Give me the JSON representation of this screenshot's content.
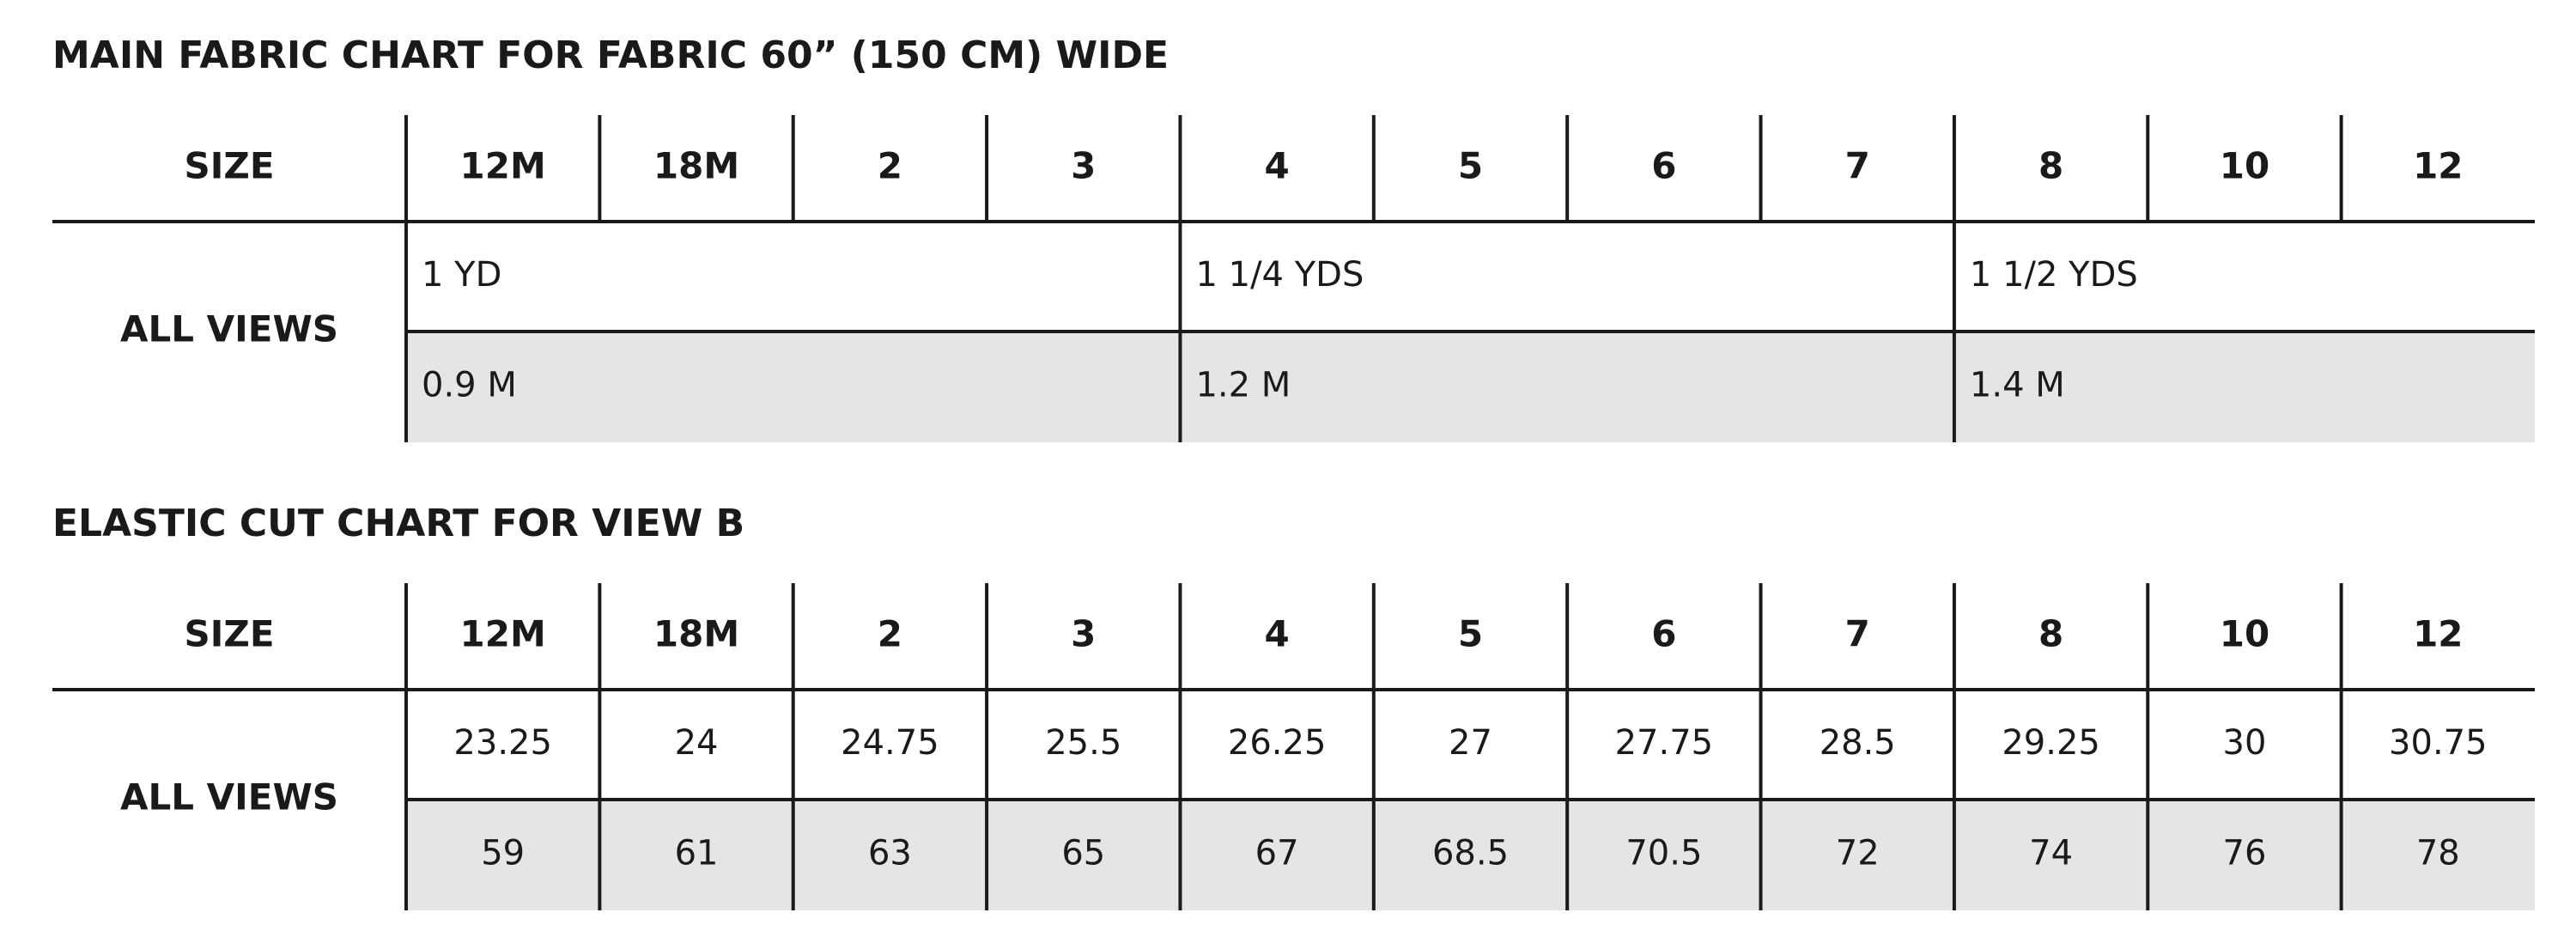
{
  "tables": [
    {
      "title": "MAIN FABRIC CHART FOR FABRIC 60” (150 CM) WIDE",
      "header": [
        "SIZE",
        "12M",
        "18M",
        "2",
        "3",
        "4",
        "5",
        "6",
        "7",
        "8",
        "10",
        "12"
      ],
      "row_label": "ALL VIEWS",
      "rows": [
        [
          "1 YD",
          "1 1/4 YDS",
          "1 1/2 YDS"
        ],
        [
          "0.9 M",
          "1.2 M",
          "1.4 M"
        ]
      ]
    },
    {
      "title": "ELASTIC CUT CHART FOR VIEW B",
      "header": [
        "SIZE",
        "12M",
        "18M",
        "2",
        "3",
        "4",
        "5",
        "6",
        "7",
        "8",
        "10",
        "12"
      ],
      "row_label": "ALL VIEWS",
      "rows": [
        [
          "23.25",
          "24",
          "24.75",
          "25.5",
          "26.25",
          "27",
          "27.75",
          "28.5",
          "29.25",
          "30",
          "30.75"
        ],
        [
          "59",
          "61",
          "63",
          "65",
          "67",
          "68.5",
          "70.5",
          "72",
          "74",
          "76",
          "78"
        ]
      ]
    }
  ]
}
